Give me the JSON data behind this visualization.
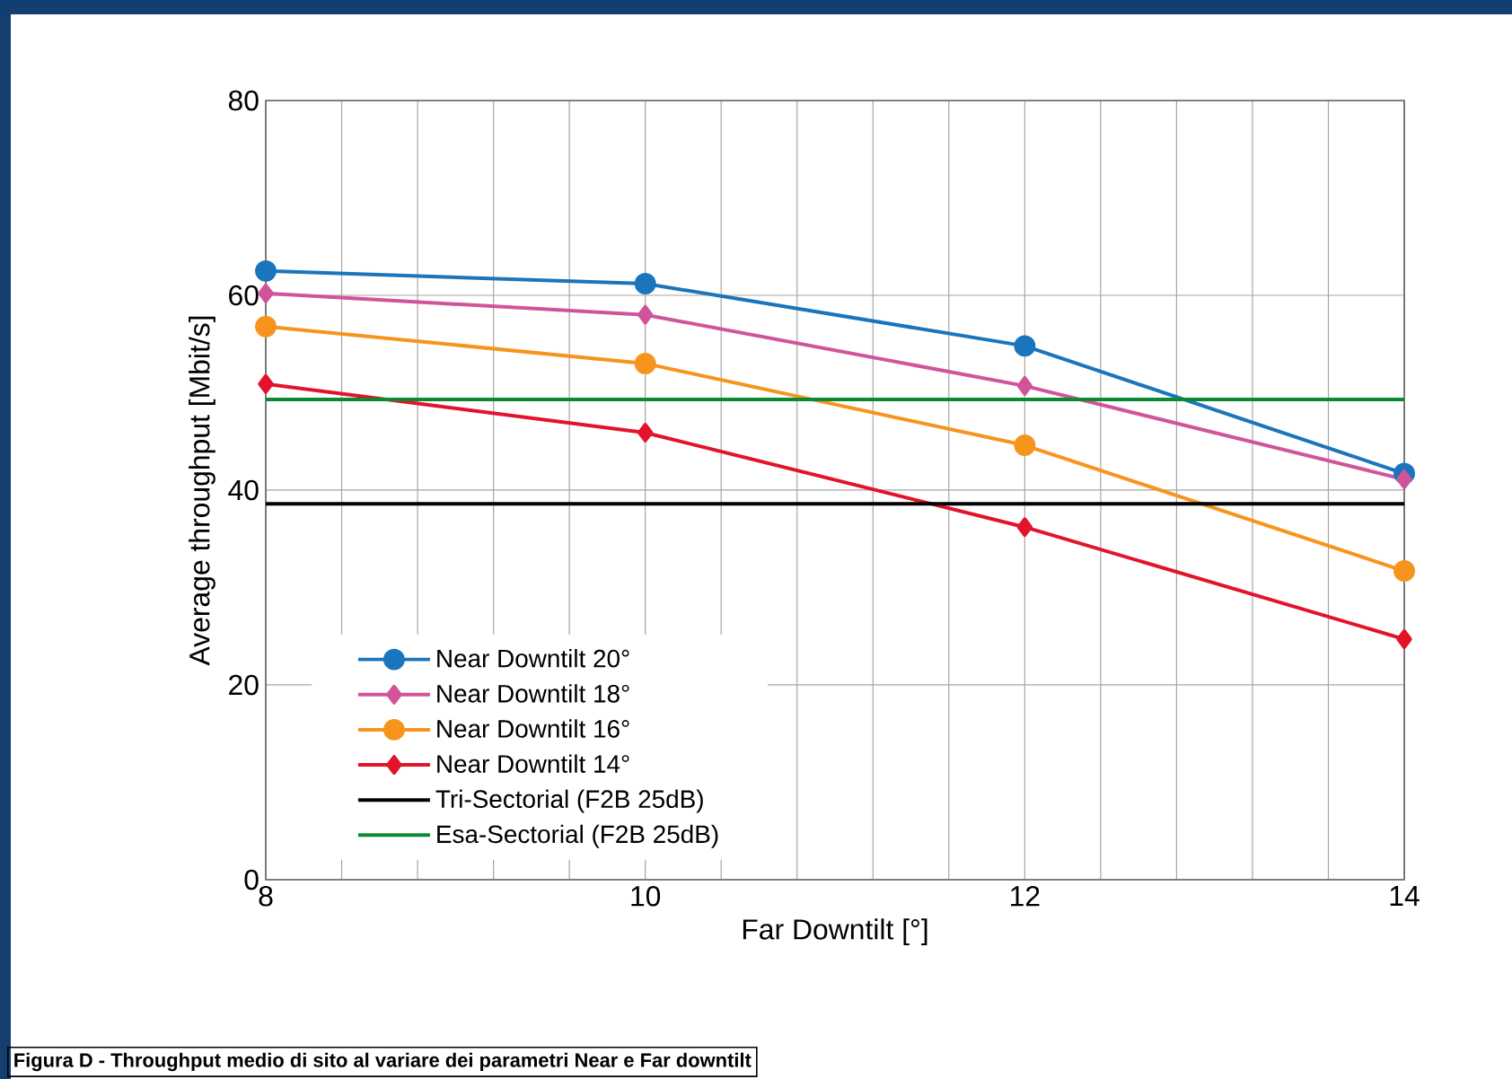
{
  "chart_data": {
    "type": "line",
    "xlabel": "Far Downtilt [°]",
    "ylabel": "Average throughput [Mbit/s]",
    "x": [
      8,
      10,
      12,
      14
    ],
    "series": [
      {
        "name": "Near Downtilt 20°",
        "color": "#1a75bc",
        "marker": "circle",
        "values": [
          62.5,
          61.2,
          54.8,
          41.7
        ]
      },
      {
        "name": "Near Downtilt 18°",
        "color": "#d1549b",
        "marker": "diamond",
        "values": [
          60.2,
          58,
          50.7,
          41.1
        ]
      },
      {
        "name": "Near Downtilt 16°",
        "color": "#f7941d",
        "marker": "circle",
        "values": [
          56.8,
          53,
          44.6,
          31.7
        ]
      },
      {
        "name": "Near Downtilt 14°",
        "color": "#e3132b",
        "marker": "diamond",
        "values": [
          50.9,
          45.9,
          36.2,
          24.7
        ]
      },
      {
        "name": "Tri-Sectorial (F2B 25dB)",
        "color": "#000000",
        "marker": "none",
        "values": [
          38.6,
          38.6,
          38.6,
          38.6
        ]
      },
      {
        "name": "Esa-Sectorial (F2B 25dB)",
        "color": "#0b8a32",
        "marker": "none",
        "values": [
          49.3,
          49.3,
          49.3,
          49.3
        ]
      }
    ],
    "xlim": [
      8,
      14
    ],
    "ylim": [
      0,
      80
    ],
    "xticks": [
      8,
      10,
      12,
      14
    ],
    "yticks": [
      0,
      20,
      40,
      60,
      80
    ],
    "grid": true,
    "legend": "bottom left",
    "annotations": [
      "Figura D - Throughput medio di sito al variare dei parametri Near e Far downtilt"
    ]
  }
}
